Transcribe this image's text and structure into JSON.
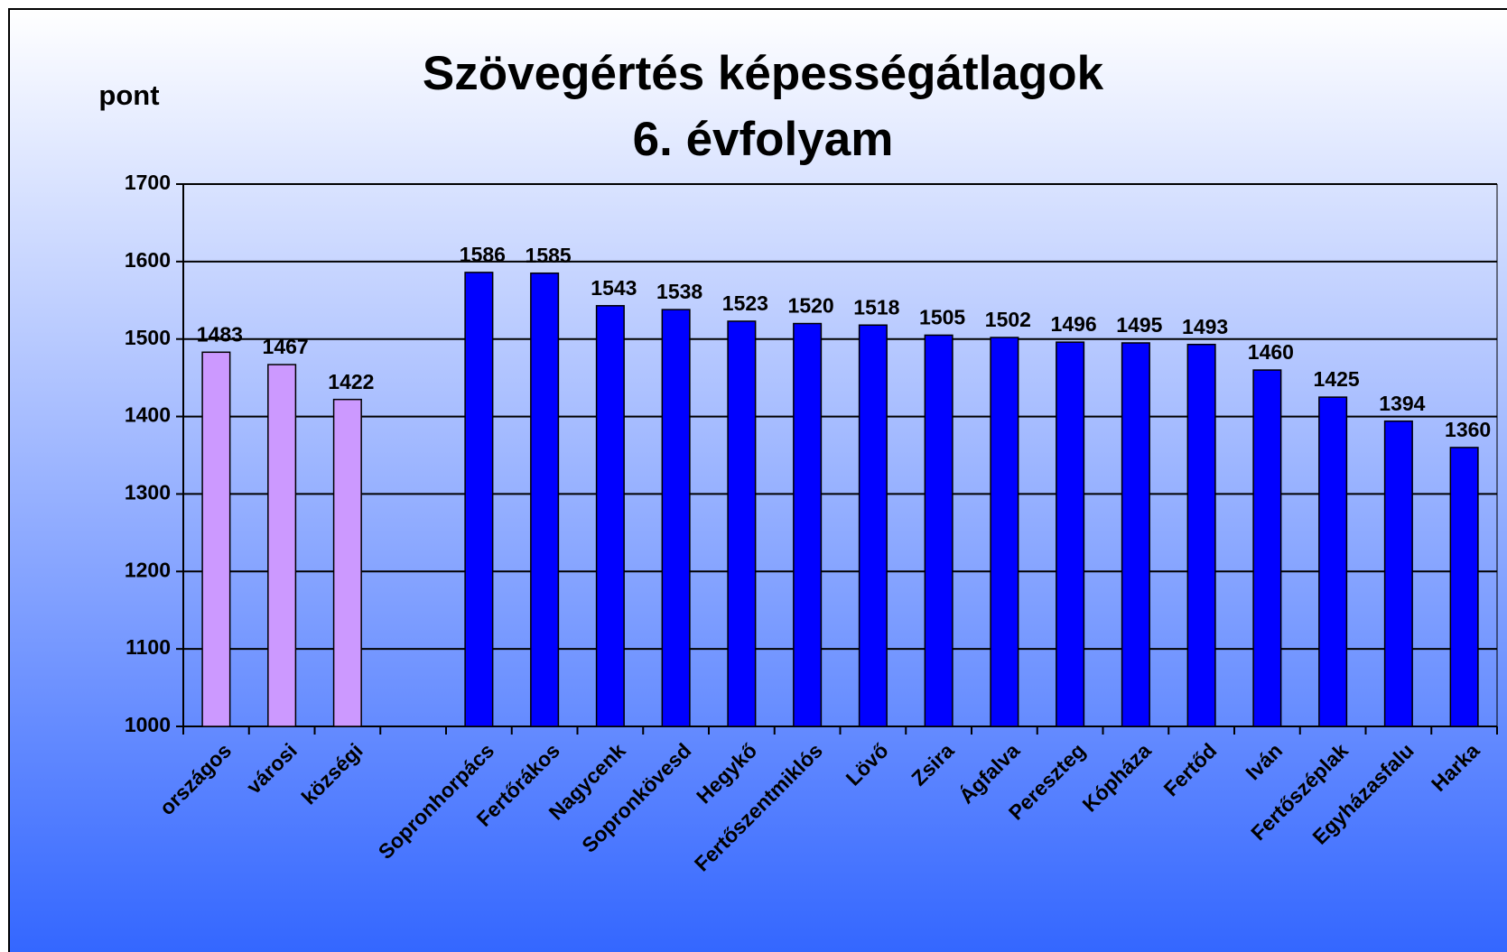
{
  "chart_data": {
    "type": "bar",
    "title": [
      "Szövegértés képességátlagok",
      "6. évfolyam"
    ],
    "y_label": "pont",
    "categories": [
      "országos",
      "városi",
      "községi",
      null,
      "Sopronhorpács",
      "Fertőrákos",
      "Nagycenk",
      "Sopronkövesd",
      "Hegykő",
      "Fertőszentmiklós",
      "Lövő",
      "Zsira",
      "Ágfalva",
      "Pereszteg",
      "Kópháza",
      "Fertőd",
      "Iván",
      "Fertőszéplak",
      "Egyházasfalu",
      "Harka"
    ],
    "values": [
      1483,
      1467,
      1422,
      null,
      1586,
      1585,
      1543,
      1538,
      1523,
      1520,
      1518,
      1505,
      1502,
      1496,
      1495,
      1493,
      1460,
      1425,
      1394,
      1360
    ],
    "colors": [
      "#cc99ff",
      "#cc99ff",
      "#cc99ff",
      null,
      "#0000ff",
      "#0000ff",
      "#0000ff",
      "#0000ff",
      "#0000ff",
      "#0000ff",
      "#0000ff",
      "#0000ff",
      "#0000ff",
      "#0000ff",
      "#0000ff",
      "#0000ff",
      "#0000ff",
      "#0000ff",
      "#0000ff",
      "#0000ff"
    ],
    "ylim": [
      1000,
      1700
    ],
    "yticks": [
      1000,
      1100,
      1200,
      1300,
      1400,
      1500,
      1600,
      1700
    ],
    "grid": true
  }
}
